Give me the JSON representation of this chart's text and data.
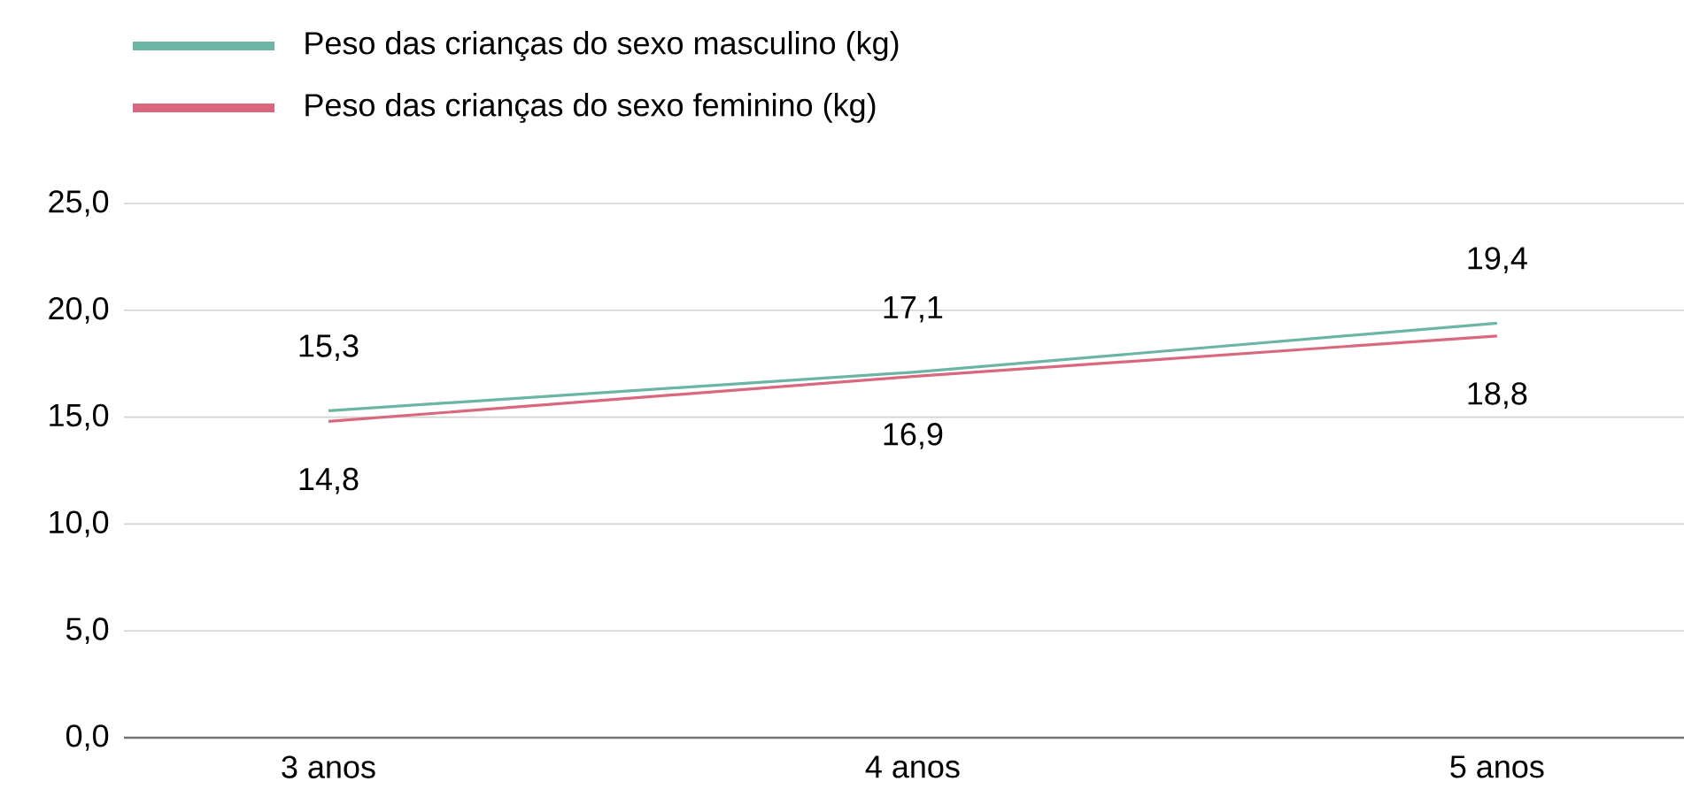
{
  "chart_data": {
    "type": "line",
    "categories": [
      "3 anos",
      "4 anos",
      "5 anos"
    ],
    "series": [
      {
        "name": "Peso das crianças do sexo masculino (kg)",
        "color": "#6cb5a5",
        "values": [
          15.3,
          17.1,
          19.4
        ],
        "value_labels": [
          "15,3",
          "17,1",
          "19,4"
        ]
      },
      {
        "name": "Peso das crianças do sexo feminino (kg)",
        "color": "#d9687e",
        "values": [
          14.8,
          16.9,
          18.8
        ],
        "value_labels": [
          "14,8",
          "16,9",
          "18,8"
        ]
      }
    ],
    "ylim": [
      0,
      25
    ],
    "yticks": [
      {
        "value": 0,
        "label": "0,0"
      },
      {
        "value": 5,
        "label": "5,0"
      },
      {
        "value": 10,
        "label": "10,0"
      },
      {
        "value": 15,
        "label": "15,0"
      },
      {
        "value": 20,
        "label": "20,0"
      },
      {
        "value": 25,
        "label": "25,0"
      }
    ],
    "grid": "y",
    "legend": "top left",
    "marker": "none",
    "line_style": "solid"
  }
}
